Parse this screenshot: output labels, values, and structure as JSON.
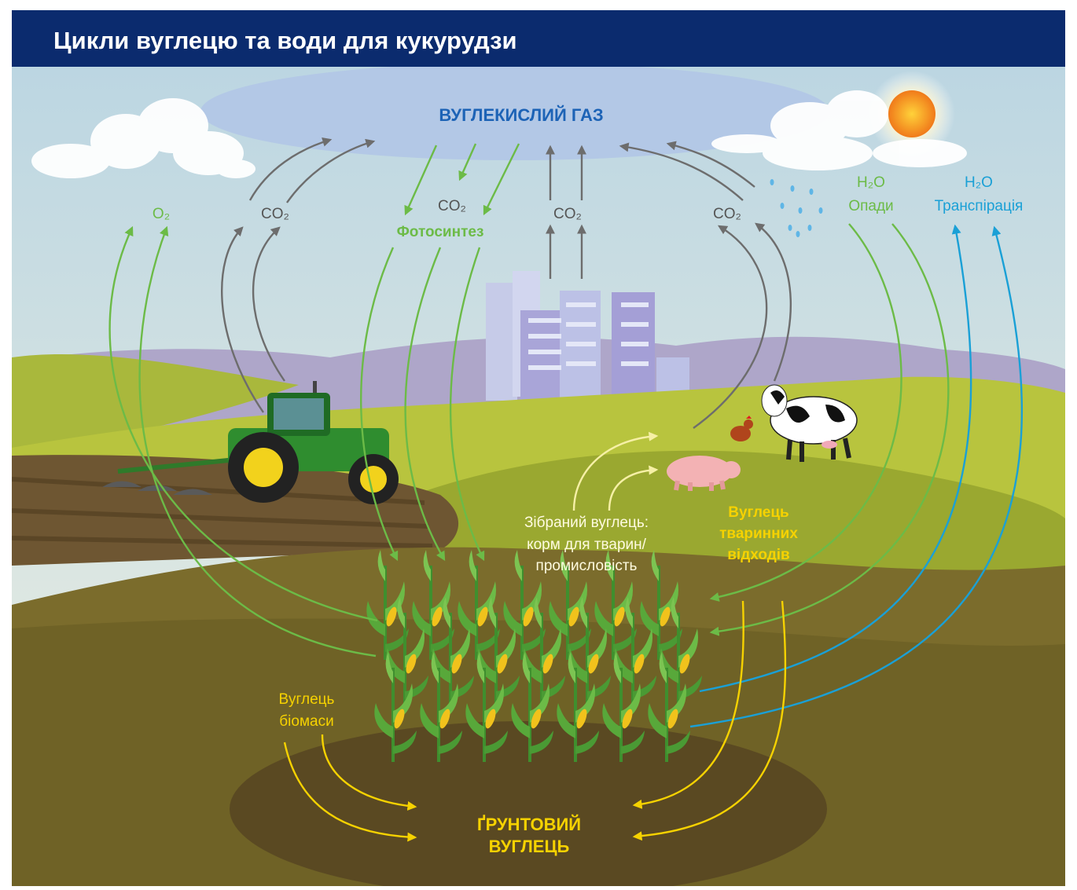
{
  "header": {
    "title": "Цикли вуглецю та води для кукурудзи"
  },
  "labels": {
    "atmosphere": "ВУГЛЕКИСЛИЙ ГАЗ",
    "oxygen": "O₂",
    "co2_left": "CO₂",
    "co2_photo": "CO₂",
    "co2_city": "CO₂",
    "co2_right": "CO₂",
    "photosynthesis": "Фотосинтез",
    "rain": [
      "H₂O",
      "Опади"
    ],
    "transpiration": [
      "H₂O",
      "Транспірація"
    ],
    "harvested": [
      "Зібраний вуглець:",
      "корм для тварин/",
      "промисловість"
    ],
    "animal_waste": [
      "Вуглець",
      "тваринних",
      "відходів"
    ],
    "biomass": [
      "Вуглець",
      "біомаси"
    ],
    "soil": [
      "ҐРУНТОВИЙ",
      "ВУГЛЕЦЬ"
    ]
  }
}
